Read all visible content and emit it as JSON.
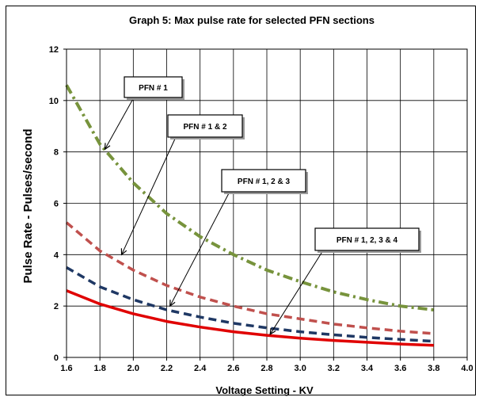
{
  "chart_data": {
    "type": "line",
    "title": "Graph 5: Max pulse rate for selected PFN sections",
    "xlabel": "Voltage Setting -  KV",
    "ylabel": "Pulse Rate - Pulses/second",
    "xlim": [
      1.6,
      4.0
    ],
    "ylim": [
      0,
      12
    ],
    "x_ticks": [
      "1.6",
      "1.8",
      "2.0",
      "2.2",
      "2.4",
      "2.6",
      "2.8",
      "3.0",
      "3.2",
      "3.4",
      "3.6",
      "3.8",
      "4.0"
    ],
    "y_ticks": [
      "0",
      "2",
      "4",
      "6",
      "8",
      "10",
      "12"
    ],
    "grid": true,
    "x": [
      1.6,
      1.8,
      2.0,
      2.2,
      2.4,
      2.6,
      2.8,
      3.0,
      3.2,
      3.4,
      3.6,
      3.8
    ],
    "series": [
      {
        "name": "PFN # 1",
        "color": "#77933C",
        "style": "dash-dot",
        "values": [
          10.6,
          8.3,
          6.8,
          5.6,
          4.7,
          4.0,
          3.4,
          2.95,
          2.55,
          2.25,
          2.0,
          1.85
        ]
      },
      {
        "name": "PFN # 1 & 2",
        "color": "#C0504D",
        "style": "dashed",
        "values": [
          5.25,
          4.15,
          3.4,
          2.8,
          2.35,
          2.0,
          1.7,
          1.5,
          1.3,
          1.15,
          1.02,
          0.93
        ]
      },
      {
        "name": "PFN # 1, 2 & 3",
        "color": "#1F3864",
        "style": "dashed",
        "values": [
          3.5,
          2.75,
          2.25,
          1.85,
          1.57,
          1.33,
          1.15,
          1.0,
          0.88,
          0.78,
          0.7,
          0.63
        ]
      },
      {
        "name": "PFN # 1, 2, 3 & 4",
        "color": "#E00000",
        "style": "solid",
        "values": [
          2.6,
          2.08,
          1.7,
          1.4,
          1.18,
          1.0,
          0.86,
          0.75,
          0.66,
          0.59,
          0.52,
          0.47
        ]
      }
    ],
    "annotations": [
      {
        "text": "PFN # 1",
        "tip_x": 1.83,
        "tip_y": 8.1
      },
      {
        "text": "PFN # 1 & 2",
        "tip_x": 1.93,
        "tip_y": 4.0
      },
      {
        "text": "PFN # 1, 2 & 3",
        "tip_x": 2.22,
        "tip_y": 2.0
      },
      {
        "text": "PFN # 1, 2, 3 & 4",
        "tip_x": 2.82,
        "tip_y": 0.9
      }
    ]
  }
}
